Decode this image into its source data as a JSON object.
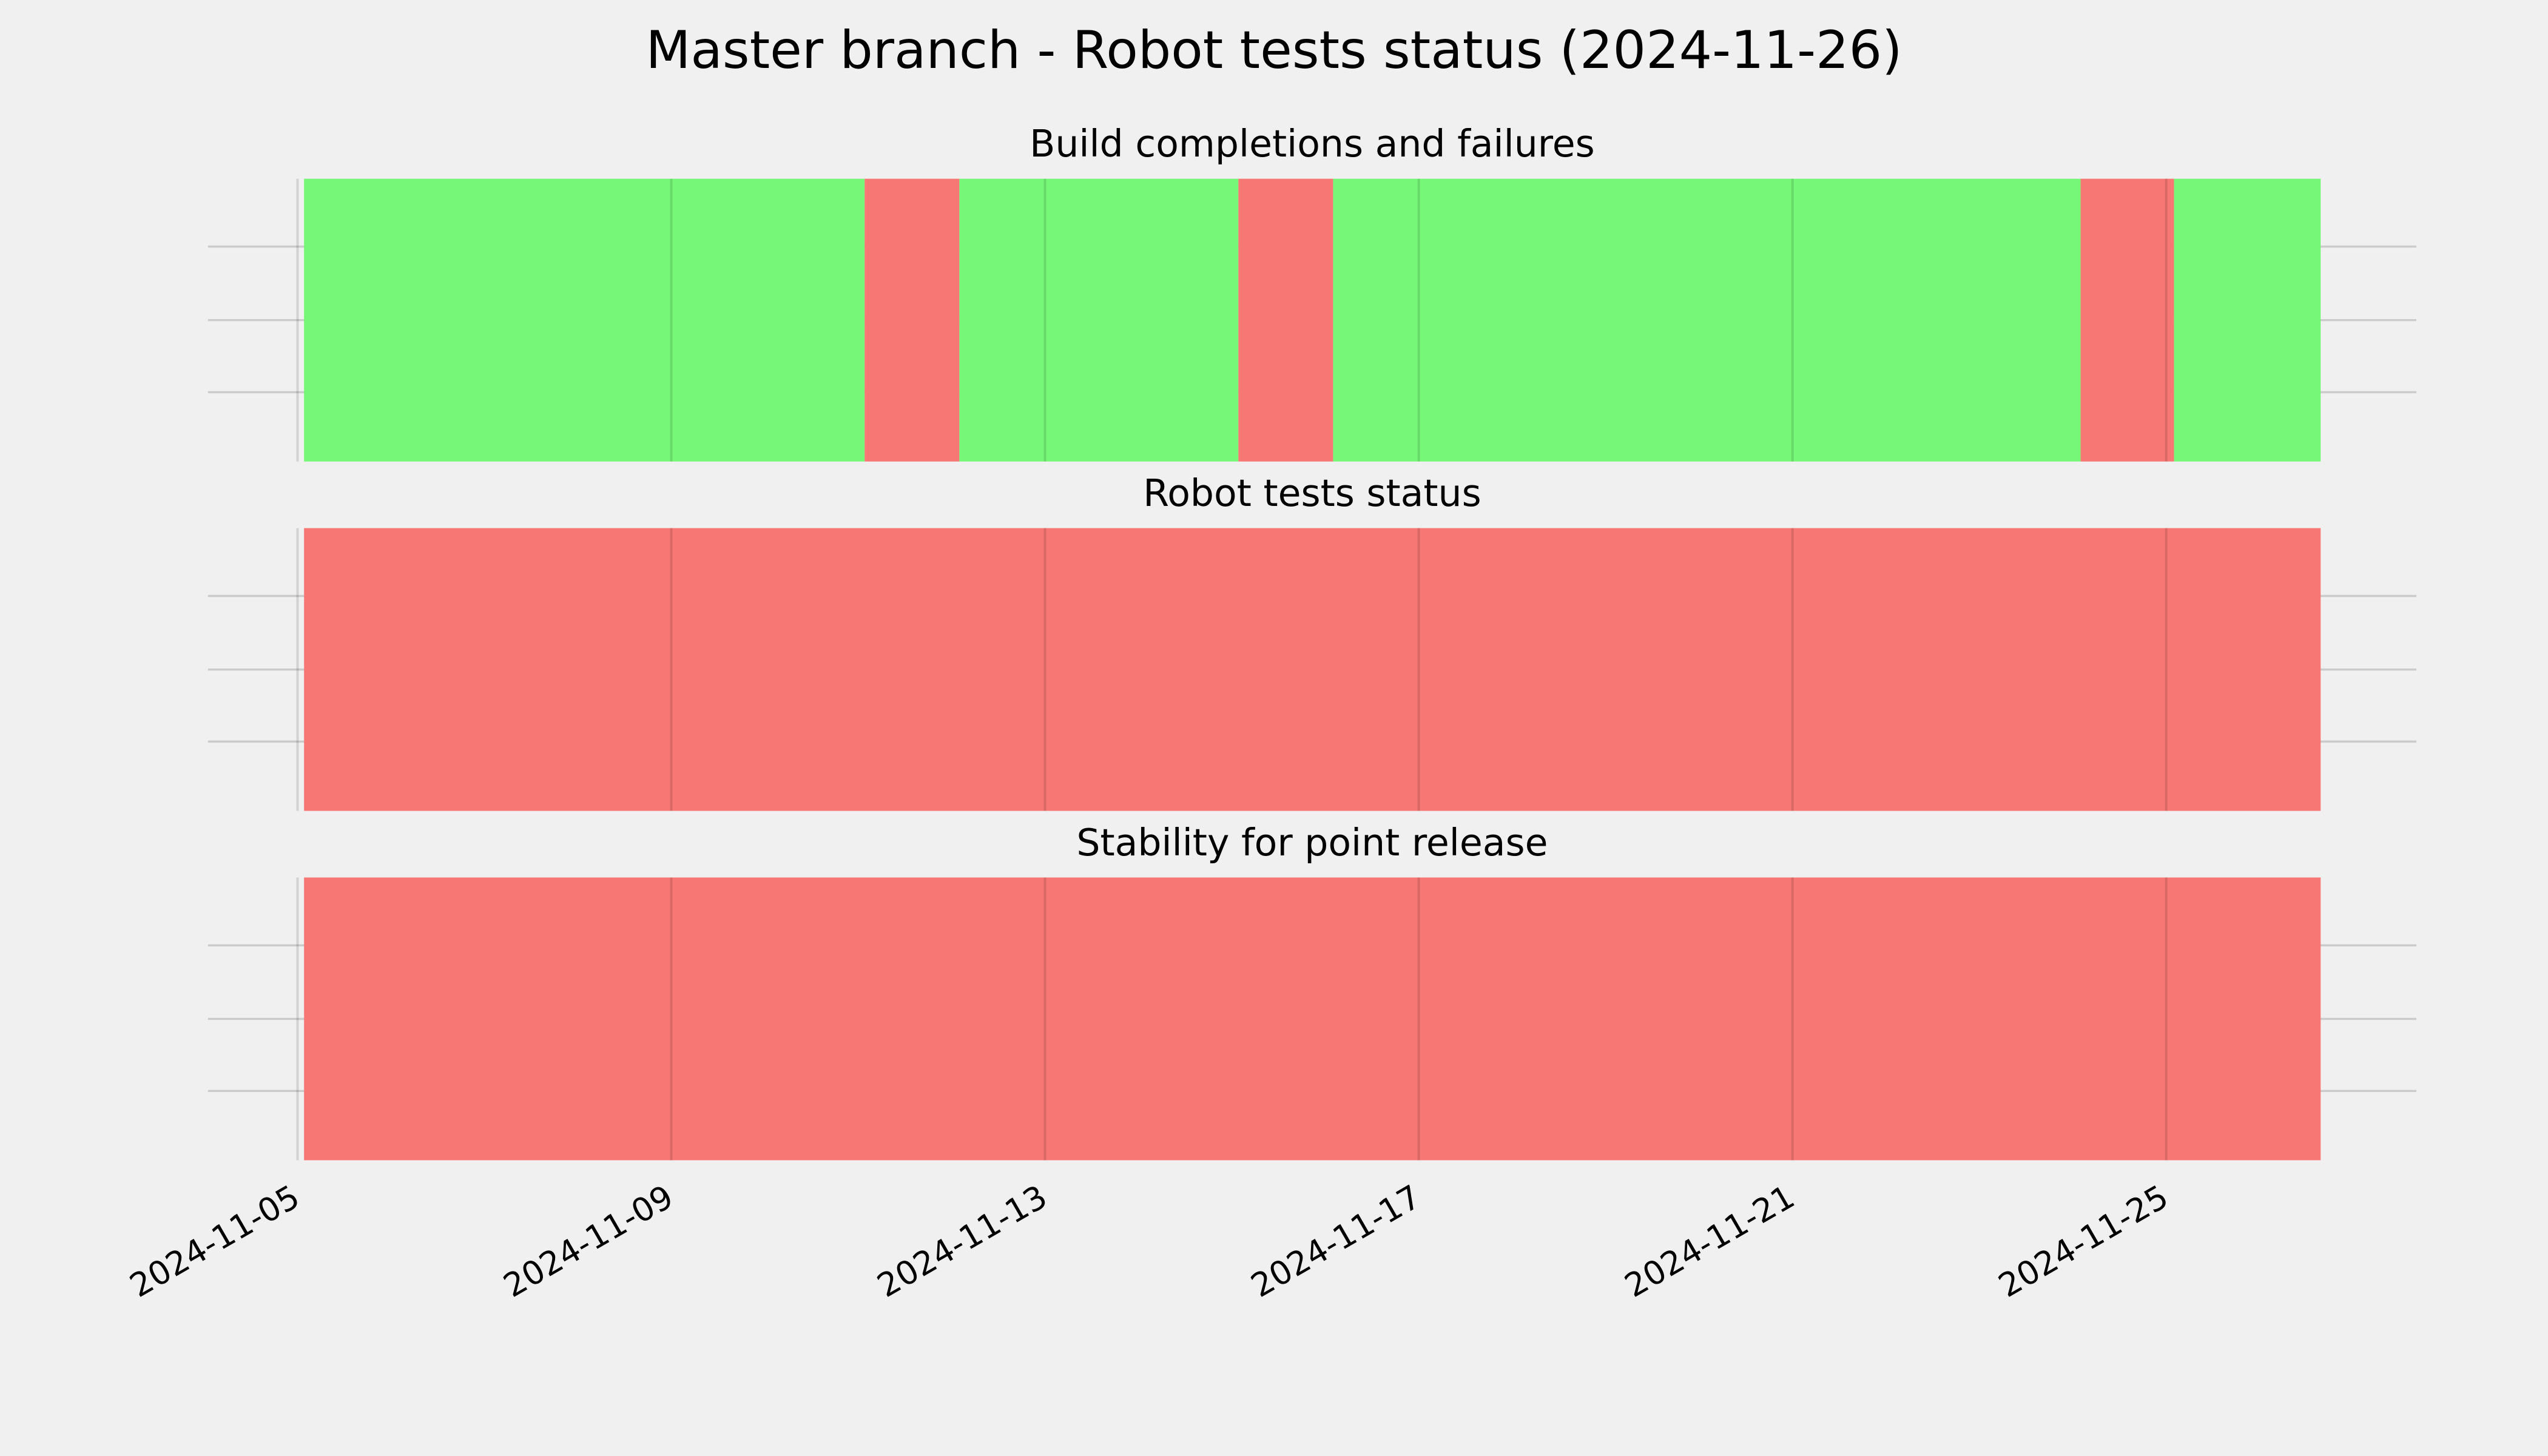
{
  "title": "Master branch - Robot tests status (2024-11-26)",
  "chart_data": [
    {
      "type": "timeline",
      "title": "Build completions and failures",
      "xlim": [
        "2024-11-04T01:00",
        "2024-11-27T16:15"
      ],
      "xticks": [
        "2024-11-05",
        "2024-11-09",
        "2024-11-13",
        "2024-11-17",
        "2024-11-21",
        "2024-11-25"
      ],
      "grid": true,
      "segments": [
        {
          "start": "2024-11-05T01:40",
          "end": "2024-11-11T01:40",
          "color": "#76f777"
        },
        {
          "start": "2024-11-11T01:40",
          "end": "2024-11-12T02:00",
          "color": "#f77774"
        },
        {
          "start": "2024-11-12T02:00",
          "end": "2024-11-15T01:40",
          "color": "#76f777"
        },
        {
          "start": "2024-11-15T01:40",
          "end": "2024-11-16T02:00",
          "color": "#f77774"
        },
        {
          "start": "2024-11-16T02:00",
          "end": "2024-11-24T02:00",
          "color": "#76f777"
        },
        {
          "start": "2024-11-24T02:00",
          "end": "2024-11-25T02:00",
          "color": "#f77774"
        },
        {
          "start": "2024-11-25T02:00",
          "end": "2024-11-26T15:40",
          "color": "#76f777"
        }
      ]
    },
    {
      "type": "timeline",
      "title": "Robot tests status",
      "xlim": [
        "2024-11-04T01:00",
        "2024-11-27T16:15"
      ],
      "xticks": [
        "2024-11-05",
        "2024-11-09",
        "2024-11-13",
        "2024-11-17",
        "2024-11-21",
        "2024-11-25"
      ],
      "grid": true,
      "segments": [
        {
          "start": "2024-11-05T01:40",
          "end": "2024-11-26T15:40",
          "color": "#f77774"
        }
      ]
    },
    {
      "type": "timeline",
      "title": "Stability for point release",
      "xlim": [
        "2024-11-04T01:00",
        "2024-11-27T16:15"
      ],
      "xticks": [
        "2024-11-05",
        "2024-11-09",
        "2024-11-13",
        "2024-11-17",
        "2024-11-21",
        "2024-11-25"
      ],
      "grid": true,
      "segments": [
        {
          "start": "2024-11-05T01:40",
          "end": "2024-11-26T15:40",
          "color": "#f77774"
        }
      ]
    }
  ]
}
